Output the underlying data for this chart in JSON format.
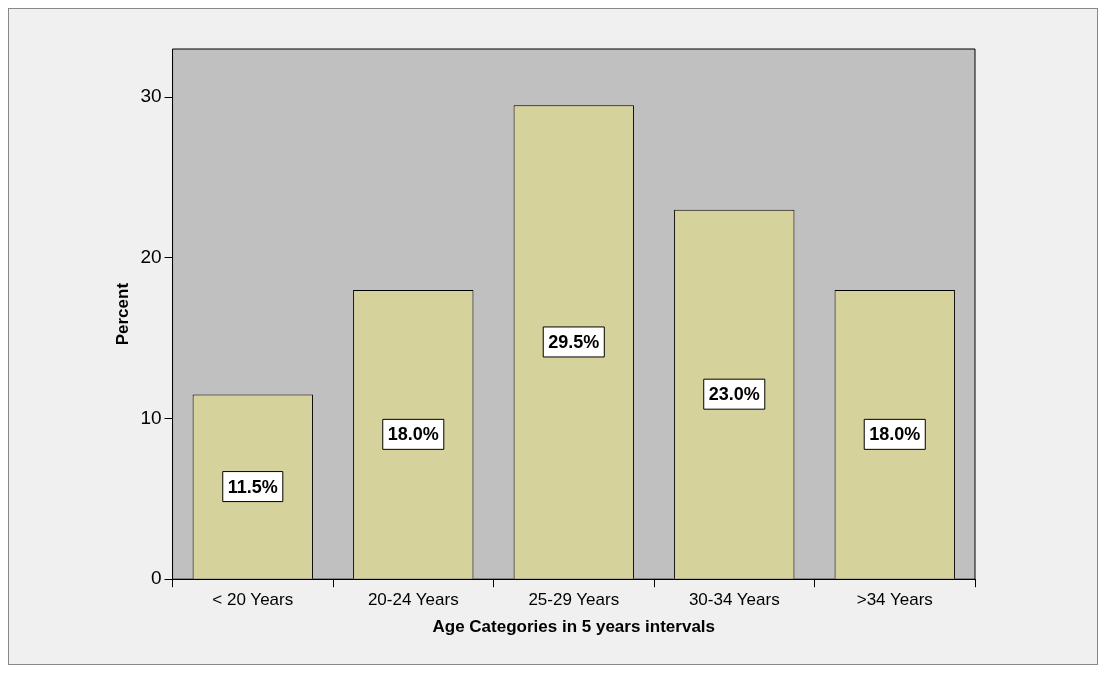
{
  "chart_data": {
    "type": "bar",
    "xlabel": "Age Categories in 5 years intervals",
    "ylabel": "Percent",
    "categories": [
      "< 20 Years",
      "20-24 Years",
      "25-29 Years",
      "30-34 Years",
      ">34 Years"
    ],
    "values": [
      11.5,
      18.0,
      29.5,
      23.0,
      18.0
    ],
    "value_labels": [
      "11.5%",
      "18.0%",
      "29.5%",
      "23.0%",
      "18.0%"
    ],
    "color": "#d6d29c",
    "ylim": [
      0,
      33
    ],
    "yticks": [
      0,
      10,
      20,
      30
    ],
    "grid": false,
    "legend": false
  }
}
